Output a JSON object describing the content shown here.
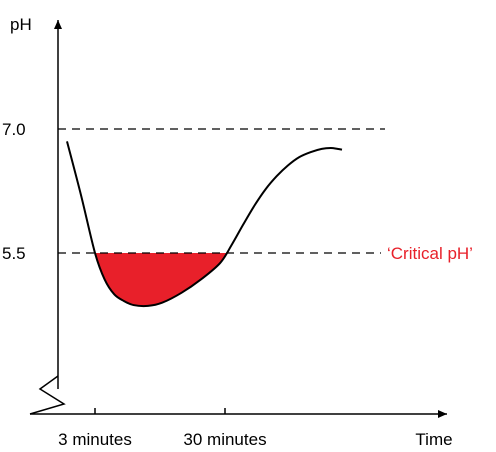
{
  "chart_data": {
    "type": "line",
    "ylabel": "pH",
    "xlabel": "Time",
    "yticks": [
      {
        "value": 7.0,
        "label": "7.0"
      },
      {
        "value": 5.5,
        "label": "5.5"
      }
    ],
    "xticks": [
      {
        "value": 3,
        "label": "3 minutes"
      },
      {
        "value": 30,
        "label": "30 minutes"
      }
    ],
    "reference_lines": [
      {
        "y": 7.0,
        "style": "dashed"
      },
      {
        "y": 5.5,
        "style": "dashed",
        "annotation": "‘Critical pH’"
      }
    ],
    "annotation_color": "#e8202a",
    "fill_color": "#e8202a",
    "fill_region": "below 5.5",
    "y_axis_broken": true,
    "grid": false,
    "series": [
      {
        "x": [
          -3,
          0,
          3,
          5,
          7,
          9,
          11,
          14,
          17,
          21,
          25,
          29,
          33,
          38,
          43,
          48,
          53,
          58,
          63,
          68,
          73,
          77,
          80,
          82
        ],
        "y": [
          6.85,
          6.2,
          5.5,
          5.18,
          5.0,
          4.92,
          4.87,
          4.86,
          4.9,
          5.02,
          5.18,
          5.38,
          5.6,
          5.84,
          6.07,
          6.27,
          6.43,
          6.56,
          6.66,
          6.72,
          6.76,
          6.77,
          6.76,
          6.75
        ]
      }
    ]
  }
}
